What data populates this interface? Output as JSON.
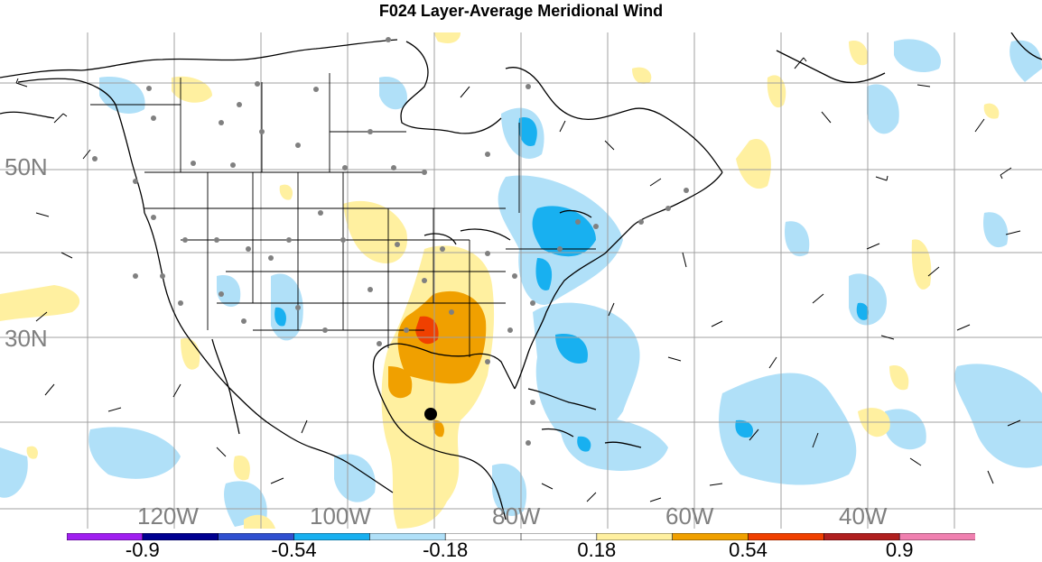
{
  "title": "F024 Layer-Average Meridional Wind",
  "map": {
    "latitude_labels": [
      "50N",
      "30N"
    ],
    "longitude_labels": [
      "120W",
      "100W",
      "80W",
      "60W",
      "40W"
    ],
    "colorbar": {
      "bins": [
        "#a020f0",
        "#000090",
        "#3050d0",
        "#18b0f0",
        "#b0e0f8",
        "#ffffff",
        "#ffffff",
        "#fff0a0",
        "#f0a000",
        "#f04000",
        "#b02020",
        "#f080b0"
      ],
      "tick_labels": [
        "-0.9",
        "-0.54",
        "-0.18",
        "0.18",
        "0.54",
        "0.9"
      ]
    },
    "palette": {
      "light_blue": "#b0e0f8",
      "mid_blue": "#18b0f0",
      "light_yellow": "#fff0a0",
      "orange": "#f0a000",
      "red_orange": "#f04000",
      "gridline": "#a0a0a0",
      "boundary": "#000000",
      "station_dot": "#808080"
    }
  }
}
